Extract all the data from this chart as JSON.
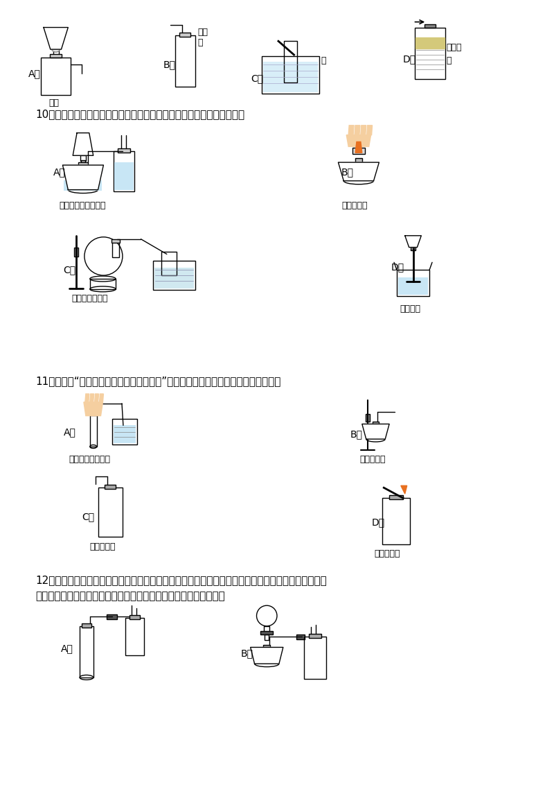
{
  "bg_color": "#ffffff",
  "text_color": "#000000",
  "page_width": 8.0,
  "page_height": 11.32,
  "dpi": 100,
  "q10_text": "10、掌握正确的实验操作是做好实验的基础，下列实验操作正确的是（）",
  "q11_text": "11、如图是“二氧化碳的制取、收集和验满”的主要实验步骤，其中操作错误的是（）",
  "q12_text1": "12、四位同学根据提供的实验仪器分别设计了下列四套制取和收集二氧化碳的装置。他们对设计的装置",
  "q12_text2": "相互进行了交流评价。其中能够使反应随时停止和发生的装置是（）",
  "label_A": "A．",
  "label_B": "B．",
  "label_C": "C．",
  "label_D": "D．",
  "cap_mianhua": "棉花",
  "cap_boli": "玻璃\n片",
  "cap_shui": "水",
  "cap_shiyongyou": "食用油",
  "cap_shui2": "水",
  "cap_co2": "实验室制取二氧化碳",
  "cap_gaijiu": "盖灭酒精灯",
  "cap_o2": "实验室制取氧气",
  "cap_pouring": "倾倒液体",
  "cap_qimi": "如图：检查气密性",
  "cap_zhiqu": "如图：制取",
  "cap_shoji": "如图：收集",
  "cap_yanman": "如图：验满"
}
